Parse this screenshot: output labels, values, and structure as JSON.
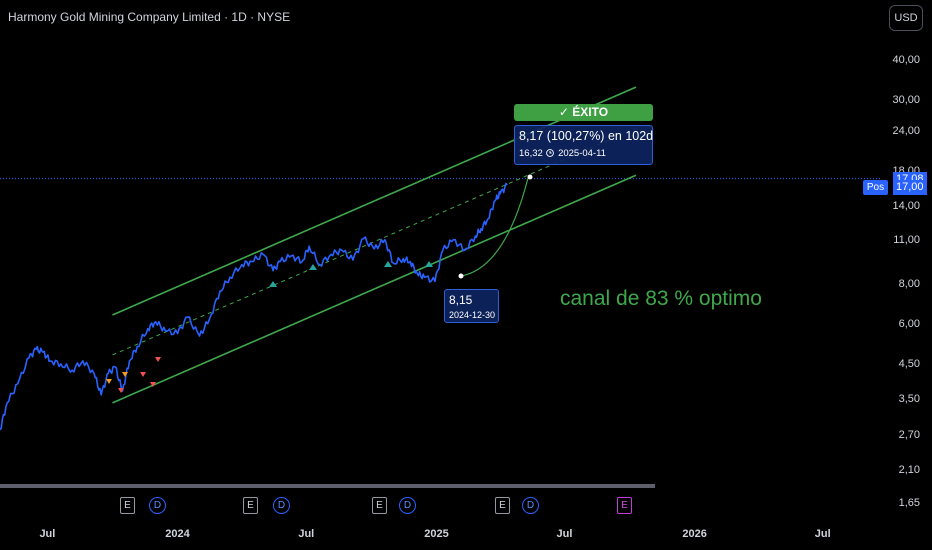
{
  "header": {
    "title": "Harmony Gold Mining Company Limited · 1D · NYSE",
    "currency_button": "USD"
  },
  "price_scale": {
    "ticks": [
      "40,00",
      "30,00",
      "24,00",
      "18,00",
      "14,00",
      "11,00",
      "8,00",
      "6,00",
      "4,50",
      "3,50",
      "2,70",
      "2,10",
      "1,65"
    ],
    "last_price_badge": "17,08",
    "position_price_badge": "17,00",
    "position_label": "Pos"
  },
  "time_scale": {
    "ticks": [
      "Jul",
      "2024",
      "Jul",
      "2025",
      "Jul",
      "2026",
      "Jul"
    ]
  },
  "annotations": {
    "success_label": "✓ ÉXITO",
    "target_main": "8,17 (100,27%) en 102d",
    "target_price": "16,32",
    "target_date": "2025-04-11",
    "clock_icon": "clock-icon",
    "low_price": "8,15",
    "low_date": "2024-12-30",
    "channel_text": "canal de 83 % optimo"
  },
  "events": [
    {
      "type": "E",
      "label": "E"
    },
    {
      "type": "D",
      "label": "D"
    },
    {
      "type": "E",
      "label": "E"
    },
    {
      "type": "D",
      "label": "D"
    },
    {
      "type": "E",
      "label": "E"
    },
    {
      "type": "D",
      "label": "D"
    },
    {
      "type": "E",
      "label": "E"
    },
    {
      "type": "D",
      "label": "D"
    },
    {
      "type": "E-future",
      "label": "E"
    }
  ],
  "colors": {
    "background": "#000000",
    "price_line": "#2962ff",
    "channel": "#3ea84b",
    "success": "#3e9f43",
    "badge": "#2962ff",
    "future_event": "#c13ddb"
  },
  "chart_data": {
    "type": "line",
    "title": "Harmony Gold Mining Company Limited · 1D · NYSE",
    "yscale": "log",
    "ylim": [
      1.55,
      45
    ],
    "xlim": [
      "2023-04-25",
      "2026-09-20"
    ],
    "series": [
      {
        "x": [
          "2023-04-25",
          "2023-05-05",
          "2023-05-20",
          "2023-06-05",
          "2023-06-15",
          "2023-06-25",
          "2023-07-05",
          "2023-07-20",
          "2023-08-05",
          "2023-08-20",
          "2023-09-05",
          "2023-09-15",
          "2023-09-25",
          "2023-10-05",
          "2023-10-15",
          "2023-10-25",
          "2023-11-05",
          "2023-11-20",
          "2023-12-01",
          "2023-12-15",
          "2024-01-01",
          "2024-01-15",
          "2024-02-01",
          "2024-02-15",
          "2024-03-01",
          "2024-03-15",
          "2024-04-01",
          "2024-04-15",
          "2024-05-01",
          "2024-05-15",
          "2024-05-25",
          "2024-06-10",
          "2024-06-25",
          "2024-07-05",
          "2024-07-20",
          "2024-08-05",
          "2024-08-20",
          "2024-09-05",
          "2024-09-20",
          "2024-10-05",
          "2024-10-20",
          "2024-11-01",
          "2024-11-15",
          "2024-11-25",
          "2024-12-05",
          "2024-12-15",
          "2024-12-30",
          "2025-01-10",
          "2025-01-25",
          "2025-02-10",
          "2025-02-25",
          "2025-03-05",
          "2025-03-15",
          "2025-03-25",
          "2025-04-01",
          "2025-04-11"
        ],
        "values": [
          2.8,
          3.4,
          3.9,
          4.7,
          5.0,
          4.9,
          4.6,
          4.5,
          4.3,
          4.6,
          4.2,
          3.6,
          4.2,
          4.4,
          3.7,
          4.6,
          5.1,
          5.8,
          6.1,
          5.7,
          5.6,
          6.3,
          5.5,
          6.2,
          7.6,
          8.4,
          9.2,
          9.4,
          9.9,
          8.8,
          9.4,
          9.8,
          9.4,
          10.5,
          9.2,
          9.9,
          10.2,
          9.5,
          11.1,
          10.3,
          11.0,
          9.3,
          9.6,
          9.4,
          8.6,
          8.4,
          8.15,
          10.2,
          11.0,
          10.2,
          11.3,
          11.9,
          12.8,
          14.6,
          15.3,
          16.32
        ]
      }
    ],
    "channel": {
      "upper": {
        "start": {
          "x": "2023-10-01",
          "y": 6.4
        },
        "end": {
          "x": "2025-10-10",
          "y": 33.0
        }
      },
      "middle": {
        "start": {
          "x": "2023-10-01",
          "y": 4.8
        },
        "end": {
          "x": "2025-10-10",
          "y": 24.5
        }
      },
      "lower": {
        "start": {
          "x": "2023-10-01",
          "y": 3.4
        },
        "end": {
          "x": "2025-10-10",
          "y": 17.5
        }
      }
    },
    "horizontal_line": 17.08
  }
}
